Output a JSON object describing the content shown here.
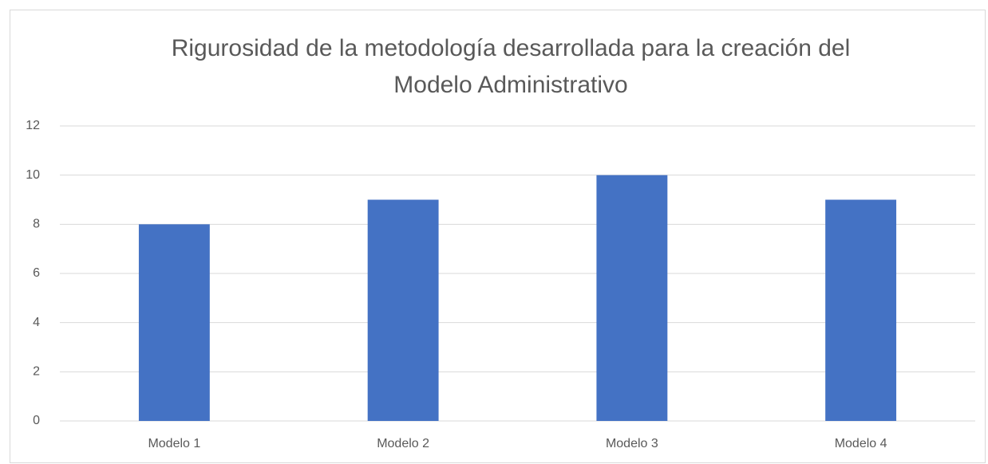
{
  "chart_data": {
    "type": "bar",
    "title": [
      "Rigurosidad de la metodología desarrollada para la creación del",
      "Modelo Administrativo"
    ],
    "categories": [
      "Modelo 1",
      "Modelo 2",
      "Modelo 3",
      "Modelo 4"
    ],
    "values": [
      8,
      9,
      10,
      9
    ],
    "color": "#4472c4",
    "ylim": [
      0,
      12
    ],
    "yticks": [
      0,
      2,
      4,
      6,
      8,
      10,
      12
    ],
    "grid": true
  }
}
